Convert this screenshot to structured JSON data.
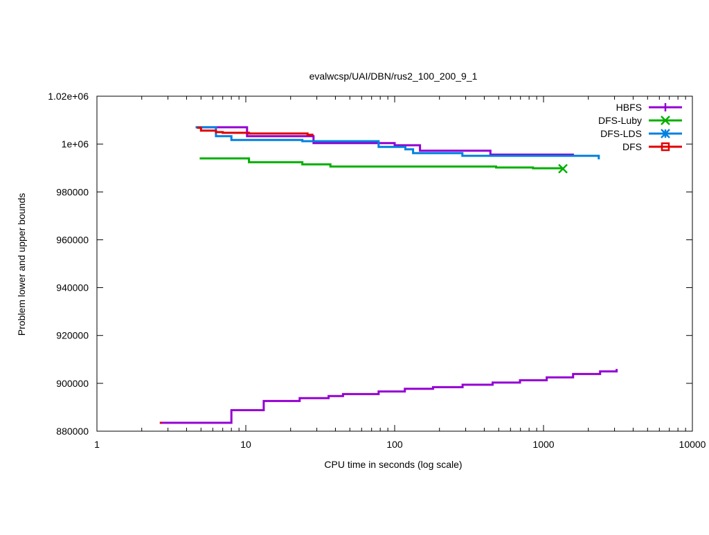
{
  "chart_data": {
    "type": "line",
    "title": "evalwcsp/UAI/DBN/rus2_100_200_9_1",
    "xlabel": "CPU time in seconds (log scale)",
    "ylabel": "Problem lower and upper bounds",
    "xscale": "log",
    "xlim": [
      1,
      10000
    ],
    "ylim": [
      880000,
      1020000
    ],
    "grid": false,
    "legend_position": "top-right",
    "x_ticks": [
      {
        "value": 1,
        "label": "1"
      },
      {
        "value": 10,
        "label": "10"
      },
      {
        "value": 100,
        "label": "100"
      },
      {
        "value": 1000,
        "label": "1000"
      },
      {
        "value": 10000,
        "label": "10000"
      }
    ],
    "y_ticks": [
      {
        "value": 880000,
        "label": "880000"
      },
      {
        "value": 900000,
        "label": "900000"
      },
      {
        "value": 920000,
        "label": "920000"
      },
      {
        "value": 940000,
        "label": "940000"
      },
      {
        "value": 960000,
        "label": "960000"
      },
      {
        "value": 980000,
        "label": "980000"
      },
      {
        "value": 1000000,
        "label": "1e+06"
      },
      {
        "value": 1020000,
        "label": "1.02e+06"
      }
    ],
    "series": [
      {
        "name": "HBFS",
        "color": "#9400d3",
        "marker": "plus",
        "upper_bound": [
          [
            4.6,
            1007000
          ],
          [
            10.2,
            1003300
          ],
          [
            28.5,
            1000400
          ],
          [
            100,
            999500
          ],
          [
            148,
            997200
          ],
          [
            440,
            995600
          ],
          [
            1600,
            995600
          ]
        ],
        "lower_bound": [
          [
            2.7,
            883500
          ],
          [
            8.0,
            888800
          ],
          [
            13.2,
            892600
          ],
          [
            23,
            893800
          ],
          [
            36,
            894700
          ],
          [
            45,
            895500
          ],
          [
            78,
            896600
          ],
          [
            117,
            897700
          ],
          [
            181,
            898400
          ],
          [
            286,
            899400
          ],
          [
            455,
            900300
          ],
          [
            695,
            901300
          ],
          [
            1050,
            902500
          ],
          [
            1580,
            903900
          ],
          [
            2400,
            905000
          ],
          [
            3100,
            906000
          ]
        ],
        "final_marker": false
      },
      {
        "name": "DFS-Luby",
        "color": "#00b000",
        "marker": "x",
        "upper_bound": [
          [
            4.9,
            994000
          ],
          [
            10.5,
            992400
          ],
          [
            24,
            991500
          ],
          [
            37,
            990600
          ],
          [
            480,
            990200
          ],
          [
            850,
            989900
          ],
          [
            1350,
            989700
          ]
        ],
        "final_marker": true
      },
      {
        "name": "DFS-LDS",
        "color": "#0080e0",
        "marker": "star",
        "upper_bound": [
          [
            4.6,
            1007000
          ],
          [
            6.3,
            1003300
          ],
          [
            8.0,
            1001700
          ],
          [
            24,
            1001200
          ],
          [
            78,
            998800
          ],
          [
            118,
            997800
          ],
          [
            133,
            996200
          ],
          [
            285,
            995100
          ],
          [
            2350,
            993600
          ]
        ],
        "final_marker": false
      },
      {
        "name": "DFS",
        "color": "#e00000",
        "marker": "square",
        "upper_bound": [
          [
            4.7,
            1006800
          ],
          [
            5.0,
            1005600
          ],
          [
            6.3,
            1005000
          ],
          [
            7.0,
            1004700
          ],
          [
            10.5,
            1004400
          ],
          [
            26,
            1003900
          ],
          [
            28.5,
            1003900
          ]
        ],
        "final_marker": false
      }
    ]
  }
}
